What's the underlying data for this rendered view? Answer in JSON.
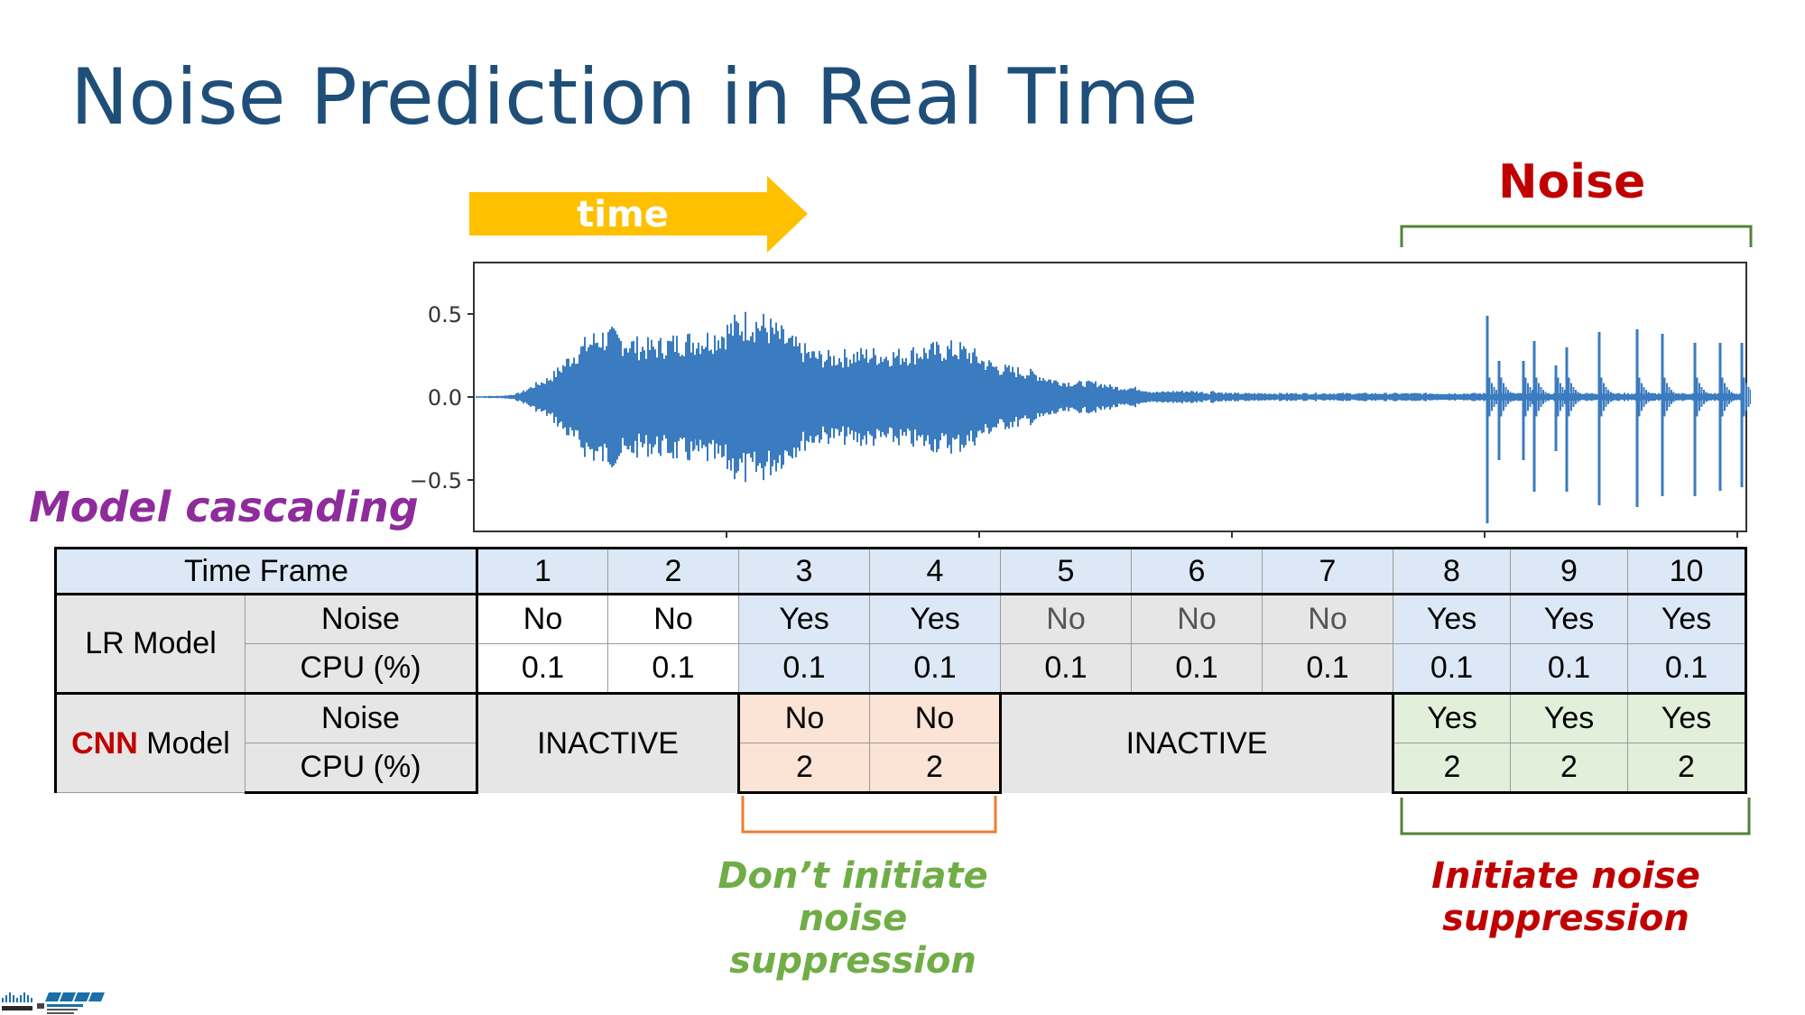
{
  "slide": {
    "title": "Noise Prediction in Real Time",
    "noise_label": "Noise",
    "time_label": "time",
    "cascade_label": "Model cascading"
  },
  "waveform": {
    "y_ticks": [
      "0.5",
      "0.0",
      "−0.5"
    ],
    "color": "#3b7bbf"
  },
  "table": {
    "header_label": "Time Frame",
    "frames": [
      "1",
      "2",
      "3",
      "4",
      "5",
      "6",
      "7",
      "8",
      "9",
      "10"
    ],
    "lr_model": {
      "label": "LR Model",
      "noise_label": "Noise",
      "cpu_label": "CPU (%)",
      "noise": [
        "No",
        "No",
        "Yes",
        "Yes",
        "No",
        "No",
        "No",
        "Yes",
        "Yes",
        "Yes"
      ],
      "cpu": [
        "0.1",
        "0.1",
        "0.1",
        "0.1",
        "0.1",
        "0.1",
        "0.1",
        "0.1",
        "0.1",
        "0.1"
      ]
    },
    "cnn_model": {
      "label_prefix": "CNN",
      "label_suffix": " Model",
      "noise_label": "Noise",
      "cpu_label": "CPU (%)",
      "inactive_a": "INACTIVE",
      "inactive_b": "INACTIVE",
      "noise_3": "No",
      "noise_4": "No",
      "cpu_3": "2",
      "cpu_4": "2",
      "noise_8": "Yes",
      "noise_9": "Yes",
      "noise_10": "Yes",
      "cpu_8": "2",
      "cpu_9": "2",
      "cpu_10": "2"
    }
  },
  "annotations": {
    "dont_initiate": [
      "Don’t initiate",
      "noise",
      "suppression"
    ],
    "initiate": [
      "Initiate noise",
      "suppression"
    ]
  },
  "colors": {
    "title": "#1f4e79",
    "noise_red": "#c00000",
    "arrow_yellow": "#ffc000",
    "cascade_purple": "#8e2c9b",
    "bracket_green": "#548235",
    "bracket_orange": "#ed7d31",
    "annot_green": "#70ad47"
  }
}
